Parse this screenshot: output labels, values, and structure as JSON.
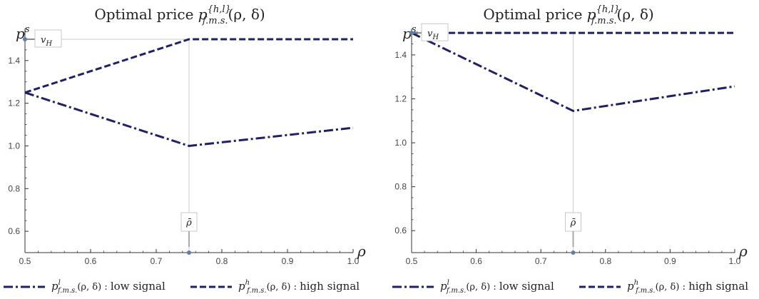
{
  "chart_data": [
    {
      "type": "line",
      "title": "Optimal price p^{h,l}_{f.m.s.}(ρ,δ)",
      "title_main": "Optimal price ",
      "title_sym": "p",
      "title_sup": "{h,l}",
      "title_sub": "f.m.s.",
      "title_args": "(ρ, δ)",
      "xlabel": "ρ",
      "ylabel": "p",
      "ylabel_sup": "s",
      "xlim": [
        0.5,
        1.0
      ],
      "ylim": [
        0.5,
        1.55
      ],
      "xticks": [
        "0.5",
        "0.6",
        "0.7",
        "0.8",
        "0.9",
        "1.0"
      ],
      "yticks": [
        "0.6",
        "0.8",
        "1.0",
        "1.2",
        "1.4"
      ],
      "grid": false,
      "series": [
        {
          "name": "p^l_{f.m.s.}(ρ,δ) : low signal",
          "style": "dashdot",
          "color": "#1f1f6b",
          "x": [
            0.5,
            0.75,
            1.0
          ],
          "y": [
            1.25,
            1.0,
            1.085
          ]
        },
        {
          "name": "p^h_{f.m.s.}(ρ,δ) : high signal",
          "style": "dashed",
          "color": "#1f1f6b",
          "x": [
            0.5,
            0.75,
            1.0
          ],
          "y": [
            1.25,
            1.5,
            1.5
          ]
        }
      ],
      "annotations": [
        {
          "label": "v_H",
          "x": 0.5,
          "y": 1.5
        },
        {
          "label": "ρ̄",
          "x": 0.75,
          "y": 0.5
        }
      ],
      "vline_x": 0.75,
      "hline_y": 1.5
    },
    {
      "type": "line",
      "title": "Optimal price p^{h,l}_{f.m.s.}(ρ,δ)",
      "title_main": "Optimal price ",
      "title_sym": "p",
      "title_sup": "{h,l}",
      "title_sub": "f.m.s.",
      "title_args": "(ρ, δ)",
      "xlabel": "ρ",
      "ylabel": "p",
      "ylabel_sup": "s",
      "xlim": [
        0.5,
        1.0
      ],
      "ylim": [
        0.5,
        1.52
      ],
      "xticks": [
        "0.5",
        "0.6",
        "0.7",
        "0.8",
        "0.9",
        "1.0"
      ],
      "yticks": [
        "0.6",
        "0.8",
        "1.0",
        "1.2",
        "1.4"
      ],
      "grid": false,
      "series": [
        {
          "name": "p^l_{f.m.s.}(ρ,δ) : low signal",
          "style": "dashdot",
          "color": "#1f1f6b",
          "x": [
            0.5,
            0.75,
            1.0
          ],
          "y": [
            1.5,
            1.145,
            1.257
          ]
        },
        {
          "name": "p^h_{f.m.s.}(ρ,δ) : high signal",
          "style": "dashed",
          "color": "#1f1f6b",
          "x": [
            0.5,
            0.75,
            1.0
          ],
          "y": [
            1.5,
            1.5,
            1.5
          ]
        }
      ],
      "annotations": [
        {
          "label": "v_H",
          "x": 0.5,
          "y": 1.5
        },
        {
          "label": "ρ̄",
          "x": 0.75,
          "y": 0.5
        }
      ],
      "vline_x": 0.75,
      "hline_y": 1.5
    }
  ],
  "legend": {
    "low_sym": "p",
    "low_sup": "l",
    "low_sub": "f.m.s.",
    "low_args": "(ρ, δ) : ",
    "low_text": "low signal",
    "high_sym": "p",
    "high_sup": "h",
    "high_sub": "f.m.s.",
    "high_args": "(ρ, δ) : ",
    "high_text": "high signal"
  },
  "colors": {
    "series": "#1f1f6b",
    "marker": "#5b7fb0",
    "guide": "#cccccc"
  }
}
